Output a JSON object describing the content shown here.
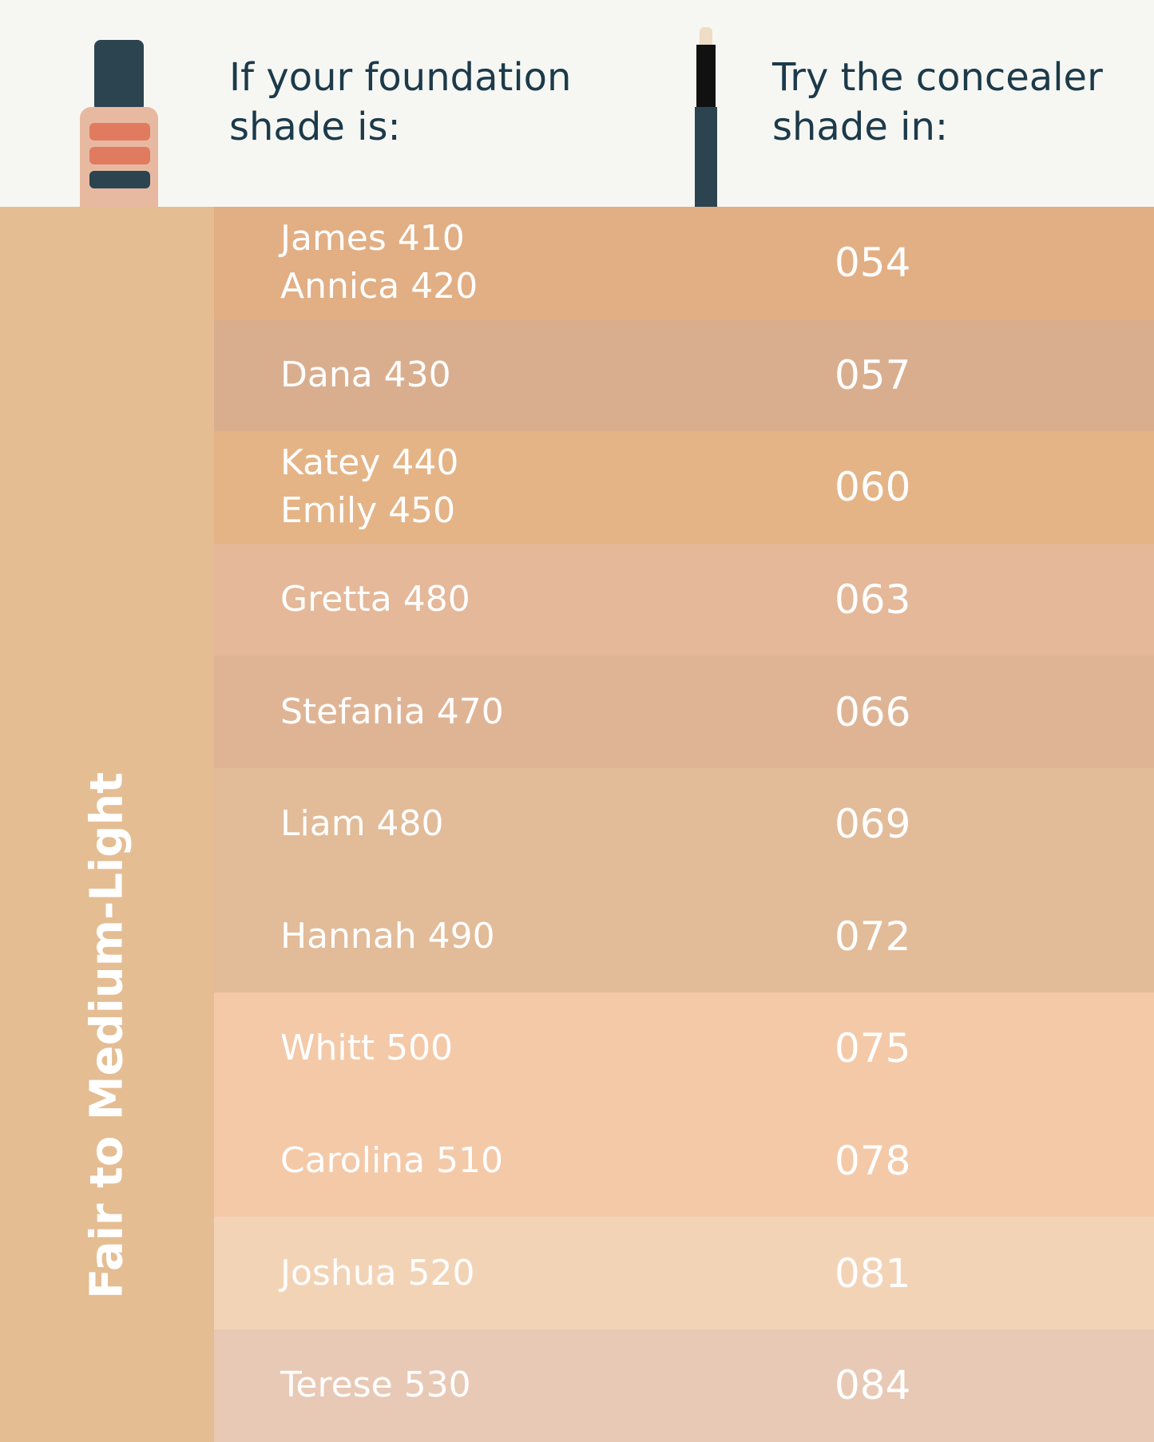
{
  "header": {
    "foundation_heading": "If your foundation shade is:",
    "concealer_heading": "Try the concealer shade in:"
  },
  "side_label": "Fair to Medium-Light",
  "rows": [
    {
      "foundation": [
        "James 410",
        "Annica 420"
      ],
      "concealer": "054",
      "color": "#e2ae84"
    },
    {
      "foundation": [
        "Dana 430"
      ],
      "concealer": "057",
      "color": "#d9ae8e"
    },
    {
      "foundation": [
        "Katey 440",
        "Emily 450"
      ],
      "concealer": "060",
      "color": "#e4b487"
    },
    {
      "foundation": [
        "Gretta 480"
      ],
      "concealer": "063",
      "color": "#e4b898"
    },
    {
      "foundation": [
        "Stefania 470"
      ],
      "concealer": "066",
      "color": "#dfb495"
    },
    {
      "foundation": [
        "Liam 480"
      ],
      "concealer": "069",
      "color": "#e2bb98"
    },
    {
      "foundation": [
        "Hannah 490"
      ],
      "concealer": "072",
      "color": "#e2bb98"
    },
    {
      "foundation": [
        "Whitt 500"
      ],
      "concealer": "075",
      "color": "#f4c9a8"
    },
    {
      "foundation": [
        "Carolina 510"
      ],
      "concealer": "078",
      "color": "#f4c9a8"
    },
    {
      "foundation": [
        "Joshua 520"
      ],
      "concealer": "081",
      "color": "#f3d3b6"
    },
    {
      "foundation": [
        "Terese 530"
      ],
      "concealer": "084",
      "color": "#e8c9b5"
    }
  ]
}
